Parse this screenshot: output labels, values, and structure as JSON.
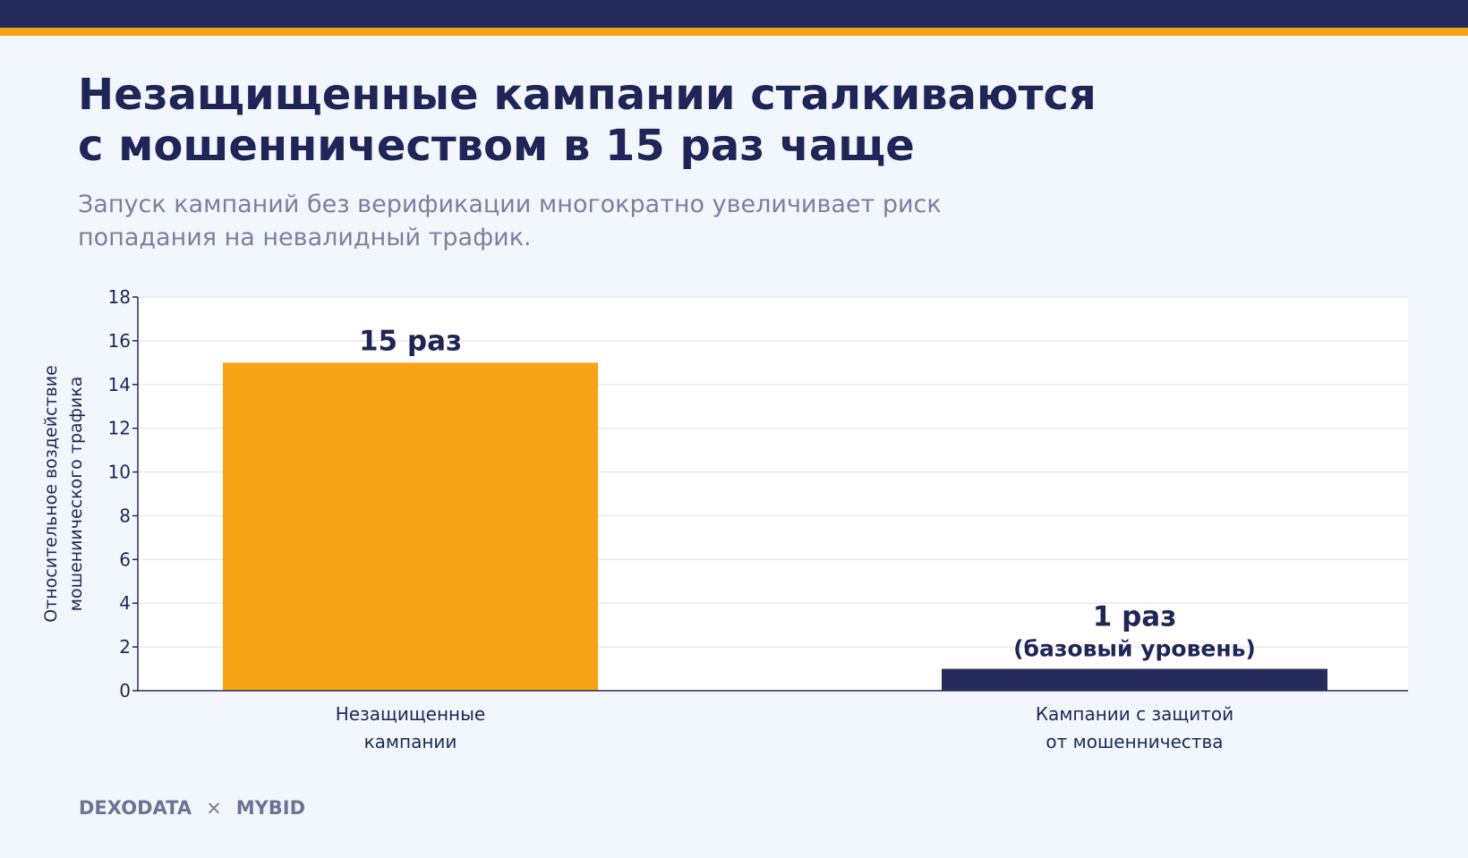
{
  "header": {
    "title": "Незащищенные кампании сталкиваются\nс мошенничеством в 15 раз чаще",
    "subtitle": "Запуск кампаний без верификации многократно увеличивает риск\nпопадания на невалидный трафик."
  },
  "colors": {
    "background": "#f1f7fd",
    "top_bar": "#262d5c",
    "accent_bar": "#f8a315",
    "bar_unprotected": "#f8a315",
    "bar_protected": "#262d5c",
    "text_dark": "#1f2657",
    "text_muted": "#7c7f9e"
  },
  "chart_data": {
    "type": "bar",
    "categories": [
      [
        "Незащищенные",
        "кампании"
      ],
      [
        "Кампании с защитой",
        "от мошенничества"
      ]
    ],
    "values": [
      15,
      1
    ],
    "data_labels": [
      [
        "15 раз"
      ],
      [
        "1 раз",
        "(базовый уровень)"
      ]
    ],
    "bar_colors": [
      "#f8a315",
      "#262d5c"
    ],
    "ylabel": [
      "Относительное воздействие",
      "мошениического трафика"
    ],
    "ylim": [
      0,
      18
    ],
    "yticks": [
      0,
      2,
      4,
      6,
      8,
      10,
      12,
      14,
      16,
      18
    ],
    "grid": true
  },
  "footer": {
    "brand_left": "DEXODATA",
    "separator": "×",
    "brand_right": "MYBID"
  }
}
